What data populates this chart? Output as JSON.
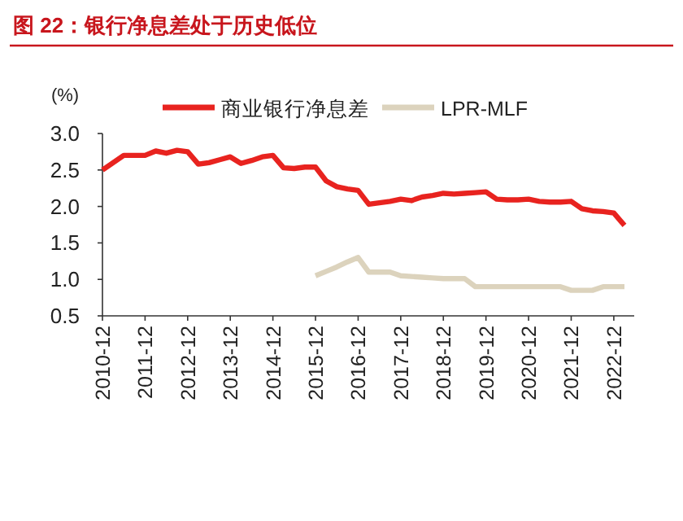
{
  "chart_data": {
    "type": "line",
    "title": "图 22：银行净息差处于历史低位",
    "ylabel": "(%)",
    "categories": [
      "2010-12",
      null,
      null,
      null,
      "2011-12",
      null,
      null,
      null,
      "2012-12",
      null,
      null,
      null,
      "2013-12",
      null,
      null,
      null,
      "2014-12",
      null,
      null,
      null,
      "2015-12",
      null,
      null,
      null,
      "2016-12",
      null,
      null,
      null,
      "2017-12",
      null,
      null,
      null,
      "2018-12",
      null,
      null,
      null,
      "2019-12",
      null,
      null,
      null,
      "2020-12",
      null,
      null,
      null,
      "2021-12",
      null,
      null,
      null,
      "2022-12",
      null
    ],
    "series": [
      {
        "name": "商业银行净息差",
        "color": "#e8231f",
        "values": [
          2.5,
          2.6,
          2.7,
          2.7,
          2.7,
          2.76,
          2.73,
          2.77,
          2.75,
          2.58,
          2.6,
          2.64,
          2.68,
          2.59,
          2.63,
          2.68,
          2.7,
          2.53,
          2.52,
          2.54,
          2.54,
          2.35,
          2.27,
          2.24,
          2.22,
          2.03,
          2.05,
          2.07,
          2.1,
          2.08,
          2.13,
          2.15,
          2.18,
          2.17,
          2.18,
          2.19,
          2.2,
          2.1,
          2.09,
          2.09,
          2.1,
          2.07,
          2.06,
          2.06,
          2.07,
          1.97,
          1.94,
          1.93,
          1.91,
          1.74
        ]
      },
      {
        "name": "LPR-MLF",
        "color": "#dcd3bd",
        "values": [
          null,
          null,
          null,
          null,
          null,
          null,
          null,
          null,
          null,
          null,
          null,
          null,
          null,
          null,
          null,
          null,
          null,
          null,
          null,
          null,
          1.05,
          1.11,
          1.17,
          1.24,
          1.3,
          1.1,
          1.1,
          1.1,
          1.05,
          1.04,
          1.03,
          1.02,
          1.01,
          1.01,
          1.01,
          0.9,
          0.9,
          0.9,
          0.9,
          0.9,
          0.9,
          0.9,
          0.9,
          0.9,
          0.85,
          0.85,
          0.85,
          0.9,
          0.9,
          0.9
        ]
      }
    ],
    "ylim": [
      0.5,
      3.0
    ],
    "yticks": [
      {
        "value": 0.5,
        "label": "0.5"
      },
      {
        "value": 1,
        "label": "1.0"
      },
      {
        "value": 1.5,
        "label": "1.5"
      },
      {
        "value": 2,
        "label": "2.0"
      },
      {
        "value": 2.5,
        "label": "2.5"
      },
      {
        "value": 3,
        "label": "3.0"
      }
    ],
    "legend": "top"
  }
}
